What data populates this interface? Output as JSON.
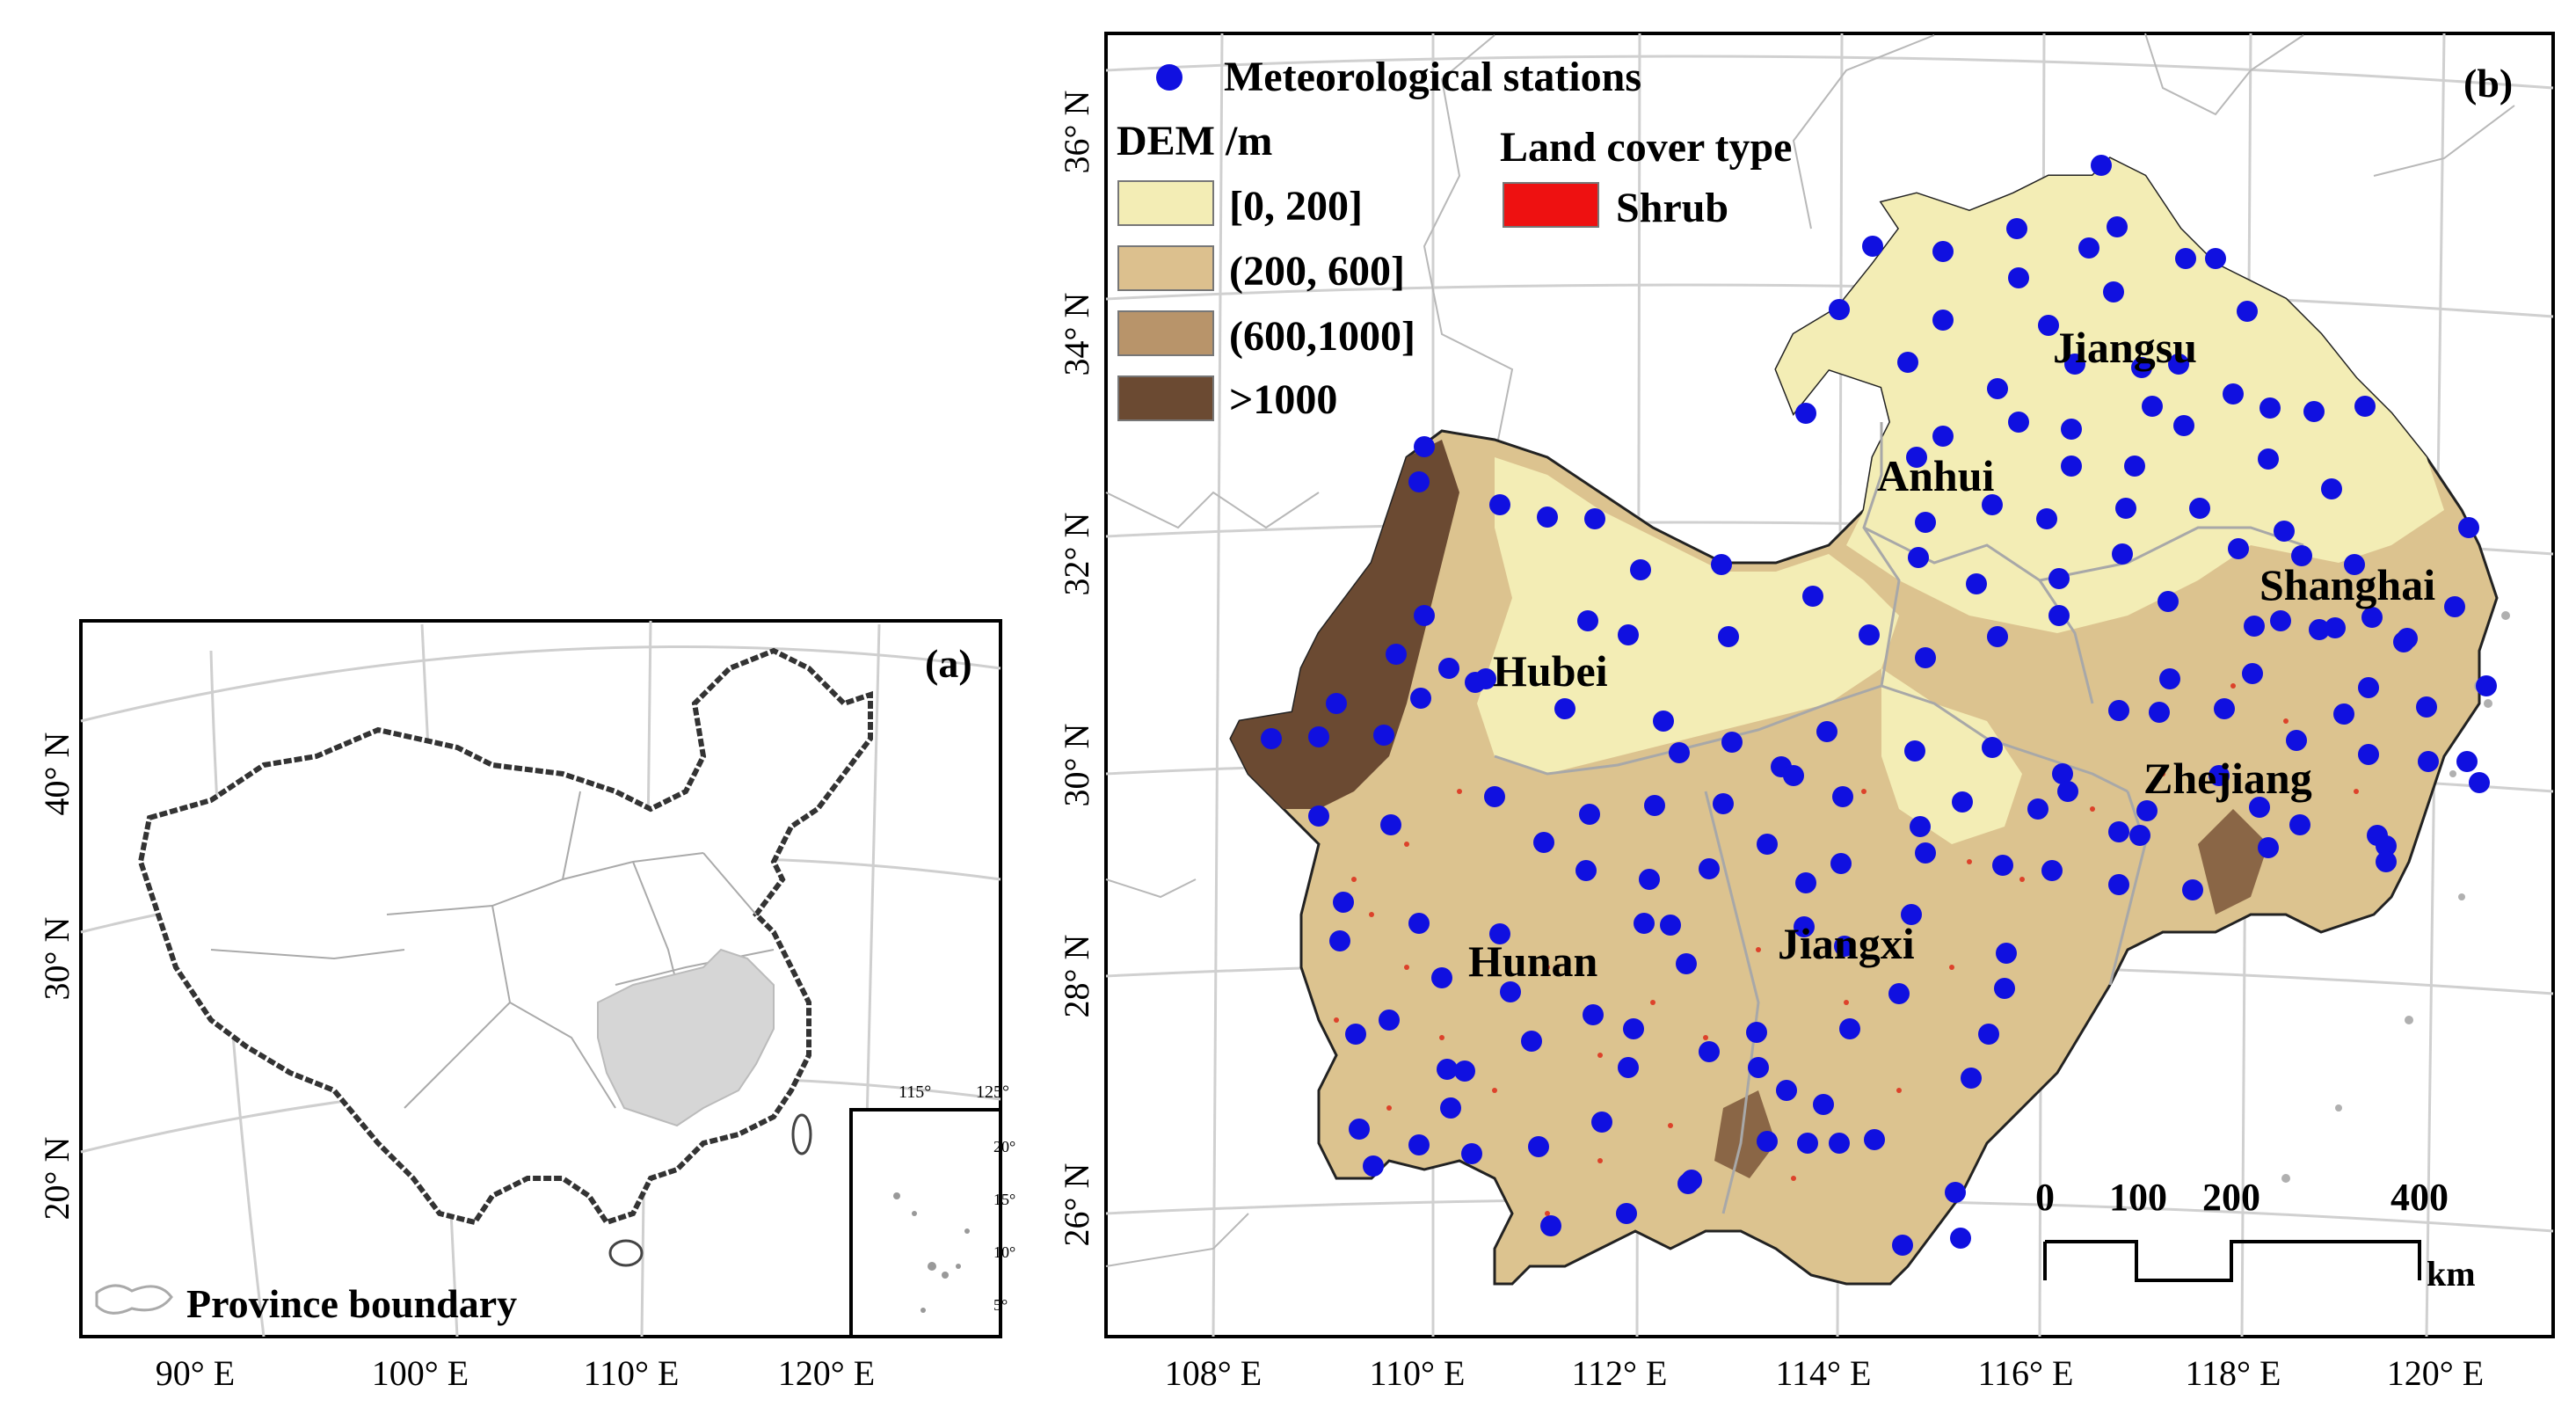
{
  "panel_a": {
    "tag": "(a)",
    "legend_label": "Province boundary",
    "lon_ticks": [
      "90° E",
      "100° E",
      "110° E",
      "120° E"
    ],
    "lat_ticks": [
      "20° N",
      "30° N",
      "40° N"
    ],
    "inset_ticks_top": [
      "115°",
      "125°"
    ],
    "inset_ticks_right": [
      "5°",
      "10°",
      "15°",
      "20°"
    ]
  },
  "panel_b": {
    "tag": "(b)",
    "stations_label": "Meteorological stations",
    "dem_title": "DEM /m",
    "dem_classes": [
      {
        "label": "[0, 200]",
        "color": "#f3edb5"
      },
      {
        "label": "(200, 600]",
        "color": "#dcc08e"
      },
      {
        "label": "(600,1000]",
        "color": "#b8946a"
      },
      {
        "label": ">1000",
        "color": "#6b4a32"
      }
    ],
    "landcover_title": "Land cover type",
    "landcover_classes": [
      {
        "label": "Shrub",
        "color": "#ee1111"
      }
    ],
    "station_color": "#1010e0",
    "provinces": [
      "Jiangsu",
      "Anhui",
      "Shanghai",
      "Hubei",
      "Zhejiang",
      "Hunan",
      "Jiangxi"
    ],
    "lon_ticks": [
      "108° E",
      "110° E",
      "112° E",
      "114° E",
      "116° E",
      "118° E",
      "120° E"
    ],
    "lat_ticks": [
      "26° N",
      "28° N",
      "30° N",
      "32° N",
      "34° N",
      "36° N"
    ],
    "scale_bar": {
      "ticks": [
        "0",
        "100",
        "200",
        "400"
      ],
      "unit": "km"
    }
  }
}
